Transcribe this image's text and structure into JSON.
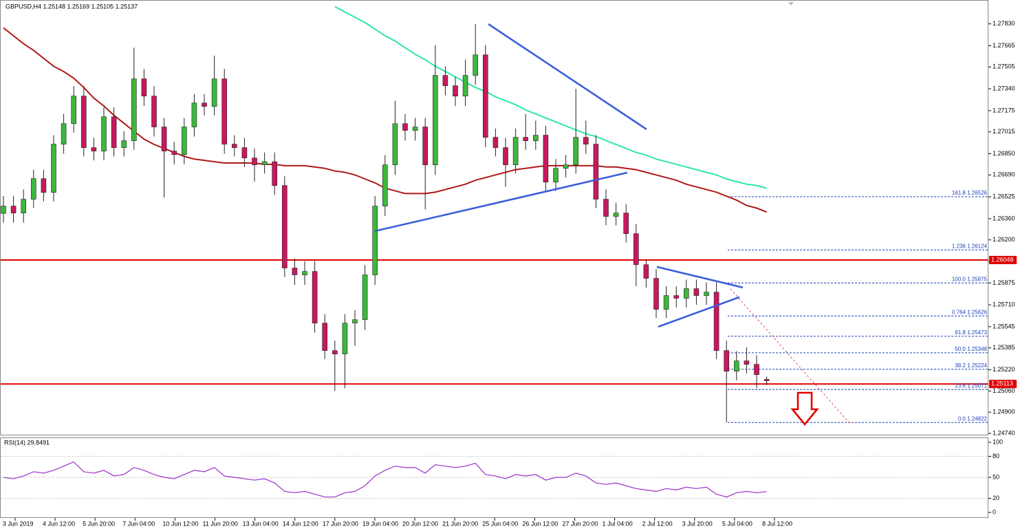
{
  "chart_data": {
    "type": "candlestick",
    "title": "GBPUSD,H4  1.25148 1.25169 1.25105 1.25137",
    "x_labels": [
      "3 Jun 2019",
      "4 Jun 12:00",
      "5 Jun 20:00",
      "7 Jun 04:00",
      "10 Jun 12:00",
      "11 Jun 20:00",
      "13 Jun 04:00",
      "14 Jun 12:00",
      "17 Jun 20:00",
      "19 Jun 04:00",
      "20 Jun 12:00",
      "21 Jun 20:00",
      "25 Jun 04:00",
      "26 Jun 12:00",
      "27 Jun 20:00",
      "1 Jul 04:00",
      "2 Jul 12:00",
      "3 Jul 20:00",
      "5 Jul 04:00",
      "8 Jul 12:00"
    ],
    "open": [
      1.264,
      1.26455,
      1.26403,
      1.26507,
      1.26662,
      1.26558,
      1.26922,
      1.27077,
      1.27285,
      1.26896,
      1.2687,
      1.27129,
      1.26896,
      1.26948,
      1.27415,
      1.27285,
      1.27052,
      1.2687,
      1.26844,
      1.27052,
      1.27233,
      1.27207,
      1.27415,
      1.26922,
      1.26896,
      1.26818,
      1.26766,
      1.2679,
      1.2661,
      1.25988,
      1.25936,
      1.25962,
      1.25572,
      1.25365,
      1.25339,
      1.25572,
      1.25598,
      1.25936,
      1.26455,
      1.26766,
      1.27077,
      1.27026,
      1.27052,
      1.26766,
      1.27441,
      1.27363,
      1.27285,
      1.27441,
      1.27596,
      1.26974,
      1.26896,
      1.26766,
      1.26974,
      1.26948,
      1.2699,
      1.26636,
      1.2674,
      1.26766,
      1.26974,
      1.26922,
      1.26507,
      1.26377,
      1.26403,
      1.26247,
      1.26013,
      1.2591,
      1.25676,
      1.2578,
      1.2576,
      1.25832,
      1.2578,
      1.25806,
      1.25365,
      1.25209,
      1.25287,
      1.25261,
      1.25148
    ],
    "high": [
      1.2653,
      1.2653,
      1.2658,
      1.2673,
      1.2673,
      1.2699,
      1.2715,
      1.2736,
      1.2736,
      1.2697,
      1.272,
      1.272,
      1.2702,
      1.2765,
      1.2749,
      1.2736,
      1.2712,
      1.2694,
      1.2712,
      1.273,
      1.273,
      1.2759,
      1.2749,
      1.2699,
      1.2697,
      1.2689,
      1.2686,
      1.2686,
      1.2668,
      1.2606,
      1.2604,
      1.2604,
      1.2564,
      1.2544,
      1.2564,
      1.2567,
      1.2601,
      1.2653,
      1.2684,
      1.2725,
      1.2715,
      1.2712,
      1.2712,
      1.2767,
      1.2751,
      1.2743,
      1.2756,
      1.2783,
      1.2767,
      1.2704,
      1.2697,
      1.2704,
      1.2715,
      1.271,
      1.2706,
      1.2681,
      1.2684,
      1.2734,
      1.271,
      1.2699,
      1.2658,
      1.2648,
      1.2647,
      1.2632,
      1.2605,
      1.2598,
      1.2585,
      1.2585,
      1.259,
      1.259,
      1.2588,
      1.2588,
      1.2544,
      1.2536,
      1.2539,
      1.2533,
      1.25169
    ],
    "low": [
      1.2633,
      1.2633,
      1.2633,
      1.2644,
      1.2649,
      1.2649,
      1.2685,
      1.2701,
      1.2683,
      1.268,
      1.268,
      1.2683,
      1.2683,
      1.2688,
      1.2721,
      1.2698,
      1.2652,
      1.2677,
      1.2677,
      1.2698,
      1.2714,
      1.2714,
      1.2685,
      1.2683,
      1.2675,
      1.2664,
      1.267,
      1.2654,
      1.2592,
      1.2586,
      1.2586,
      1.255,
      1.253,
      1.2506,
      1.2508,
      1.254,
      1.2552,
      1.2586,
      1.2638,
      1.2669,
      1.2695,
      1.2695,
      1.2643,
      1.2669,
      1.2729,
      1.2721,
      1.2721,
      1.2737,
      1.269,
      1.2683,
      1.266,
      1.267,
      1.2688,
      1.2688,
      1.2657,
      1.2657,
      1.2667,
      1.267,
      1.2685,
      1.2644,
      1.2631,
      1.2631,
      1.2618,
      1.2585,
      1.2584,
      1.2561,
      1.2561,
      1.2569,
      1.2569,
      1.2571,
      1.2571,
      1.253,
      1.24822,
      1.2514,
      1.2519,
      1.2508,
      1.25105
    ],
    "close": [
      1.26455,
      1.26403,
      1.26507,
      1.26662,
      1.26558,
      1.26922,
      1.27077,
      1.27285,
      1.26896,
      1.2687,
      1.27129,
      1.26896,
      1.26948,
      1.27415,
      1.27285,
      1.27052,
      1.2687,
      1.26844,
      1.27052,
      1.27233,
      1.27207,
      1.27415,
      1.26922,
      1.26896,
      1.26818,
      1.26766,
      1.2679,
      1.2661,
      1.25988,
      1.25936,
      1.25962,
      1.25572,
      1.25365,
      1.25339,
      1.25572,
      1.25598,
      1.25936,
      1.26455,
      1.26766,
      1.27077,
      1.27026,
      1.27052,
      1.26766,
      1.27441,
      1.27363,
      1.27285,
      1.27441,
      1.27596,
      1.26974,
      1.26896,
      1.26766,
      1.26974,
      1.26948,
      1.2699,
      1.26636,
      1.2674,
      1.26766,
      1.26974,
      1.26922,
      1.26507,
      1.26377,
      1.26403,
      1.26247,
      1.26013,
      1.2591,
      1.25676,
      1.2578,
      1.2576,
      1.25832,
      1.2578,
      1.25806,
      1.25365,
      1.25209,
      1.25287,
      1.25261,
      1.25183,
      1.25137
    ],
    "up_color": "#3cb83c",
    "down_color": "#c8185e",
    "ylim": [
      1.2473,
      1.2801
    ],
    "yticks": [
      {
        "value": 1.2783,
        "label": "1.27830"
      },
      {
        "value": 1.27665,
        "label": "1.27665"
      },
      {
        "value": 1.27505,
        "label": "1.27505"
      },
      {
        "value": 1.2734,
        "label": "1.27340"
      },
      {
        "value": 1.27175,
        "label": "1.27175"
      },
      {
        "value": 1.27015,
        "label": "1.27015"
      },
      {
        "value": 1.2685,
        "label": "1.26850"
      },
      {
        "value": 1.2669,
        "label": "1.26690"
      },
      {
        "value": 1.26525,
        "label": "1.26525"
      },
      {
        "value": 1.2636,
        "label": "1.26360"
      },
      {
        "value": 1.262,
        "label": "1.26200"
      },
      {
        "value": 1.26035,
        "label": "1.26035"
      },
      {
        "value": 1.25875,
        "label": "1.25875"
      },
      {
        "value": 1.2571,
        "label": "1.25710"
      },
      {
        "value": 1.25545,
        "label": "1.25545"
      },
      {
        "value": 1.25385,
        "label": "1.25385"
      },
      {
        "value": 1.2522,
        "label": "1.25220"
      },
      {
        "value": 1.2506,
        "label": "1.25060"
      },
      {
        "value": 1.249,
        "label": "1.24900"
      },
      {
        "value": 1.2474,
        "label": "1.24740"
      }
    ],
    "moving_averages": [
      {
        "color": "#b01818",
        "values": [
          1.278,
          1.2774,
          1.2768,
          1.2763,
          1.2757,
          1.2751,
          1.2747,
          1.2742,
          1.2735,
          1.2727,
          1.2721,
          1.2714,
          1.2708,
          1.2702,
          1.2696,
          1.2692,
          1.2689,
          1.2686,
          1.2683,
          1.2681,
          1.268,
          1.2679,
          1.2678,
          1.2678,
          1.2678,
          1.2678,
          1.2677,
          1.2677,
          1.2676,
          1.2676,
          1.2676,
          1.2675,
          1.2674,
          1.2672,
          1.2671,
          1.2669,
          1.2666,
          1.2663,
          1.2659,
          1.2657,
          1.2655,
          1.2655,
          1.2655,
          1.2656,
          1.2658,
          1.266,
          1.2662,
          1.2665,
          1.2667,
          1.2669,
          1.2671,
          1.2673,
          1.2674,
          1.2675,
          1.2676,
          1.2676,
          1.2676,
          1.2676,
          1.2676,
          1.2676,
          1.2675,
          1.2675,
          1.2674,
          1.2673,
          1.2671,
          1.2669,
          1.2667,
          1.2665,
          1.2662,
          1.266,
          1.2658,
          1.2656,
          1.2653,
          1.265,
          1.2646,
          1.2644,
          1.2641
        ]
      },
      {
        "color": "#2ee8a0",
        "values": [
          null,
          null,
          null,
          null,
          null,
          null,
          null,
          null,
          null,
          null,
          null,
          null,
          null,
          null,
          null,
          null,
          null,
          null,
          null,
          null,
          null,
          null,
          null,
          null,
          null,
          null,
          null,
          null,
          null,
          null,
          null,
          null,
          null,
          1.2796,
          1.2792,
          1.2788,
          1.2784,
          1.2779,
          1.2774,
          1.277,
          1.2765,
          1.276,
          1.2756,
          1.2751,
          1.2747,
          1.2743,
          1.2739,
          1.2735,
          1.2732,
          1.2728,
          1.2725,
          1.2722,
          1.2718,
          1.2715,
          1.2712,
          1.2709,
          1.2706,
          1.2703,
          1.27,
          1.2698,
          1.2695,
          1.2692,
          1.2689,
          1.2686,
          1.2684,
          1.2681,
          1.2679,
          1.2677,
          1.2675,
          1.2673,
          1.2671,
          1.2669,
          1.2666,
          1.2664,
          1.2662,
          1.2661,
          1.2659
        ]
      }
    ],
    "horizontal_lines": [
      {
        "value": 1.26048,
        "color": "#e00000"
      },
      {
        "value": 1.25113,
        "color": "#e00000"
      }
    ],
    "fib_levels": [
      {
        "value": 1.26526,
        "label": "161.8 1.26526"
      },
      {
        "value": 1.26124,
        "label": "1.236 1.26124"
      },
      {
        "value": 1.25875,
        "label": "100.0 1.25875"
      },
      {
        "value": 1.25626,
        "label": "0.764 1.25626"
      },
      {
        "value": 1.25473,
        "label": "61.8 1.25473"
      },
      {
        "value": 1.25348,
        "label": "50.0 1.25348"
      },
      {
        "value": 1.25224,
        "label": "38.2 1.25224"
      },
      {
        "value": 1.25071,
        "label": "23.6 1.25071"
      },
      {
        "value": 1.24822,
        "label": "0.0 1.24822"
      }
    ],
    "fib_color": "#1c3fb8",
    "rsi": {
      "title": "RSI(14) 29.8491",
      "color": "#9b30c8",
      "ylim": [
        0,
        100
      ],
      "yticks": [
        100,
        80,
        50,
        20,
        0
      ],
      "levels": [
        80,
        50,
        20
      ],
      "values": [
        50,
        48,
        52,
        58,
        56,
        60,
        66,
        72,
        58,
        56,
        60,
        52,
        54,
        64,
        60,
        54,
        50,
        48,
        54,
        60,
        58,
        64,
        52,
        50,
        48,
        46,
        48,
        42,
        30,
        28,
        30,
        26,
        22,
        22,
        28,
        30,
        38,
        52,
        60,
        66,
        64,
        64,
        56,
        68,
        66,
        64,
        66,
        70,
        54,
        52,
        48,
        54,
        52,
        54,
        46,
        50,
        50,
        56,
        52,
        42,
        40,
        42,
        38,
        34,
        32,
        30,
        34,
        32,
        36,
        34,
        36,
        26,
        22,
        28,
        30,
        28,
        29.8491
      ]
    }
  }
}
